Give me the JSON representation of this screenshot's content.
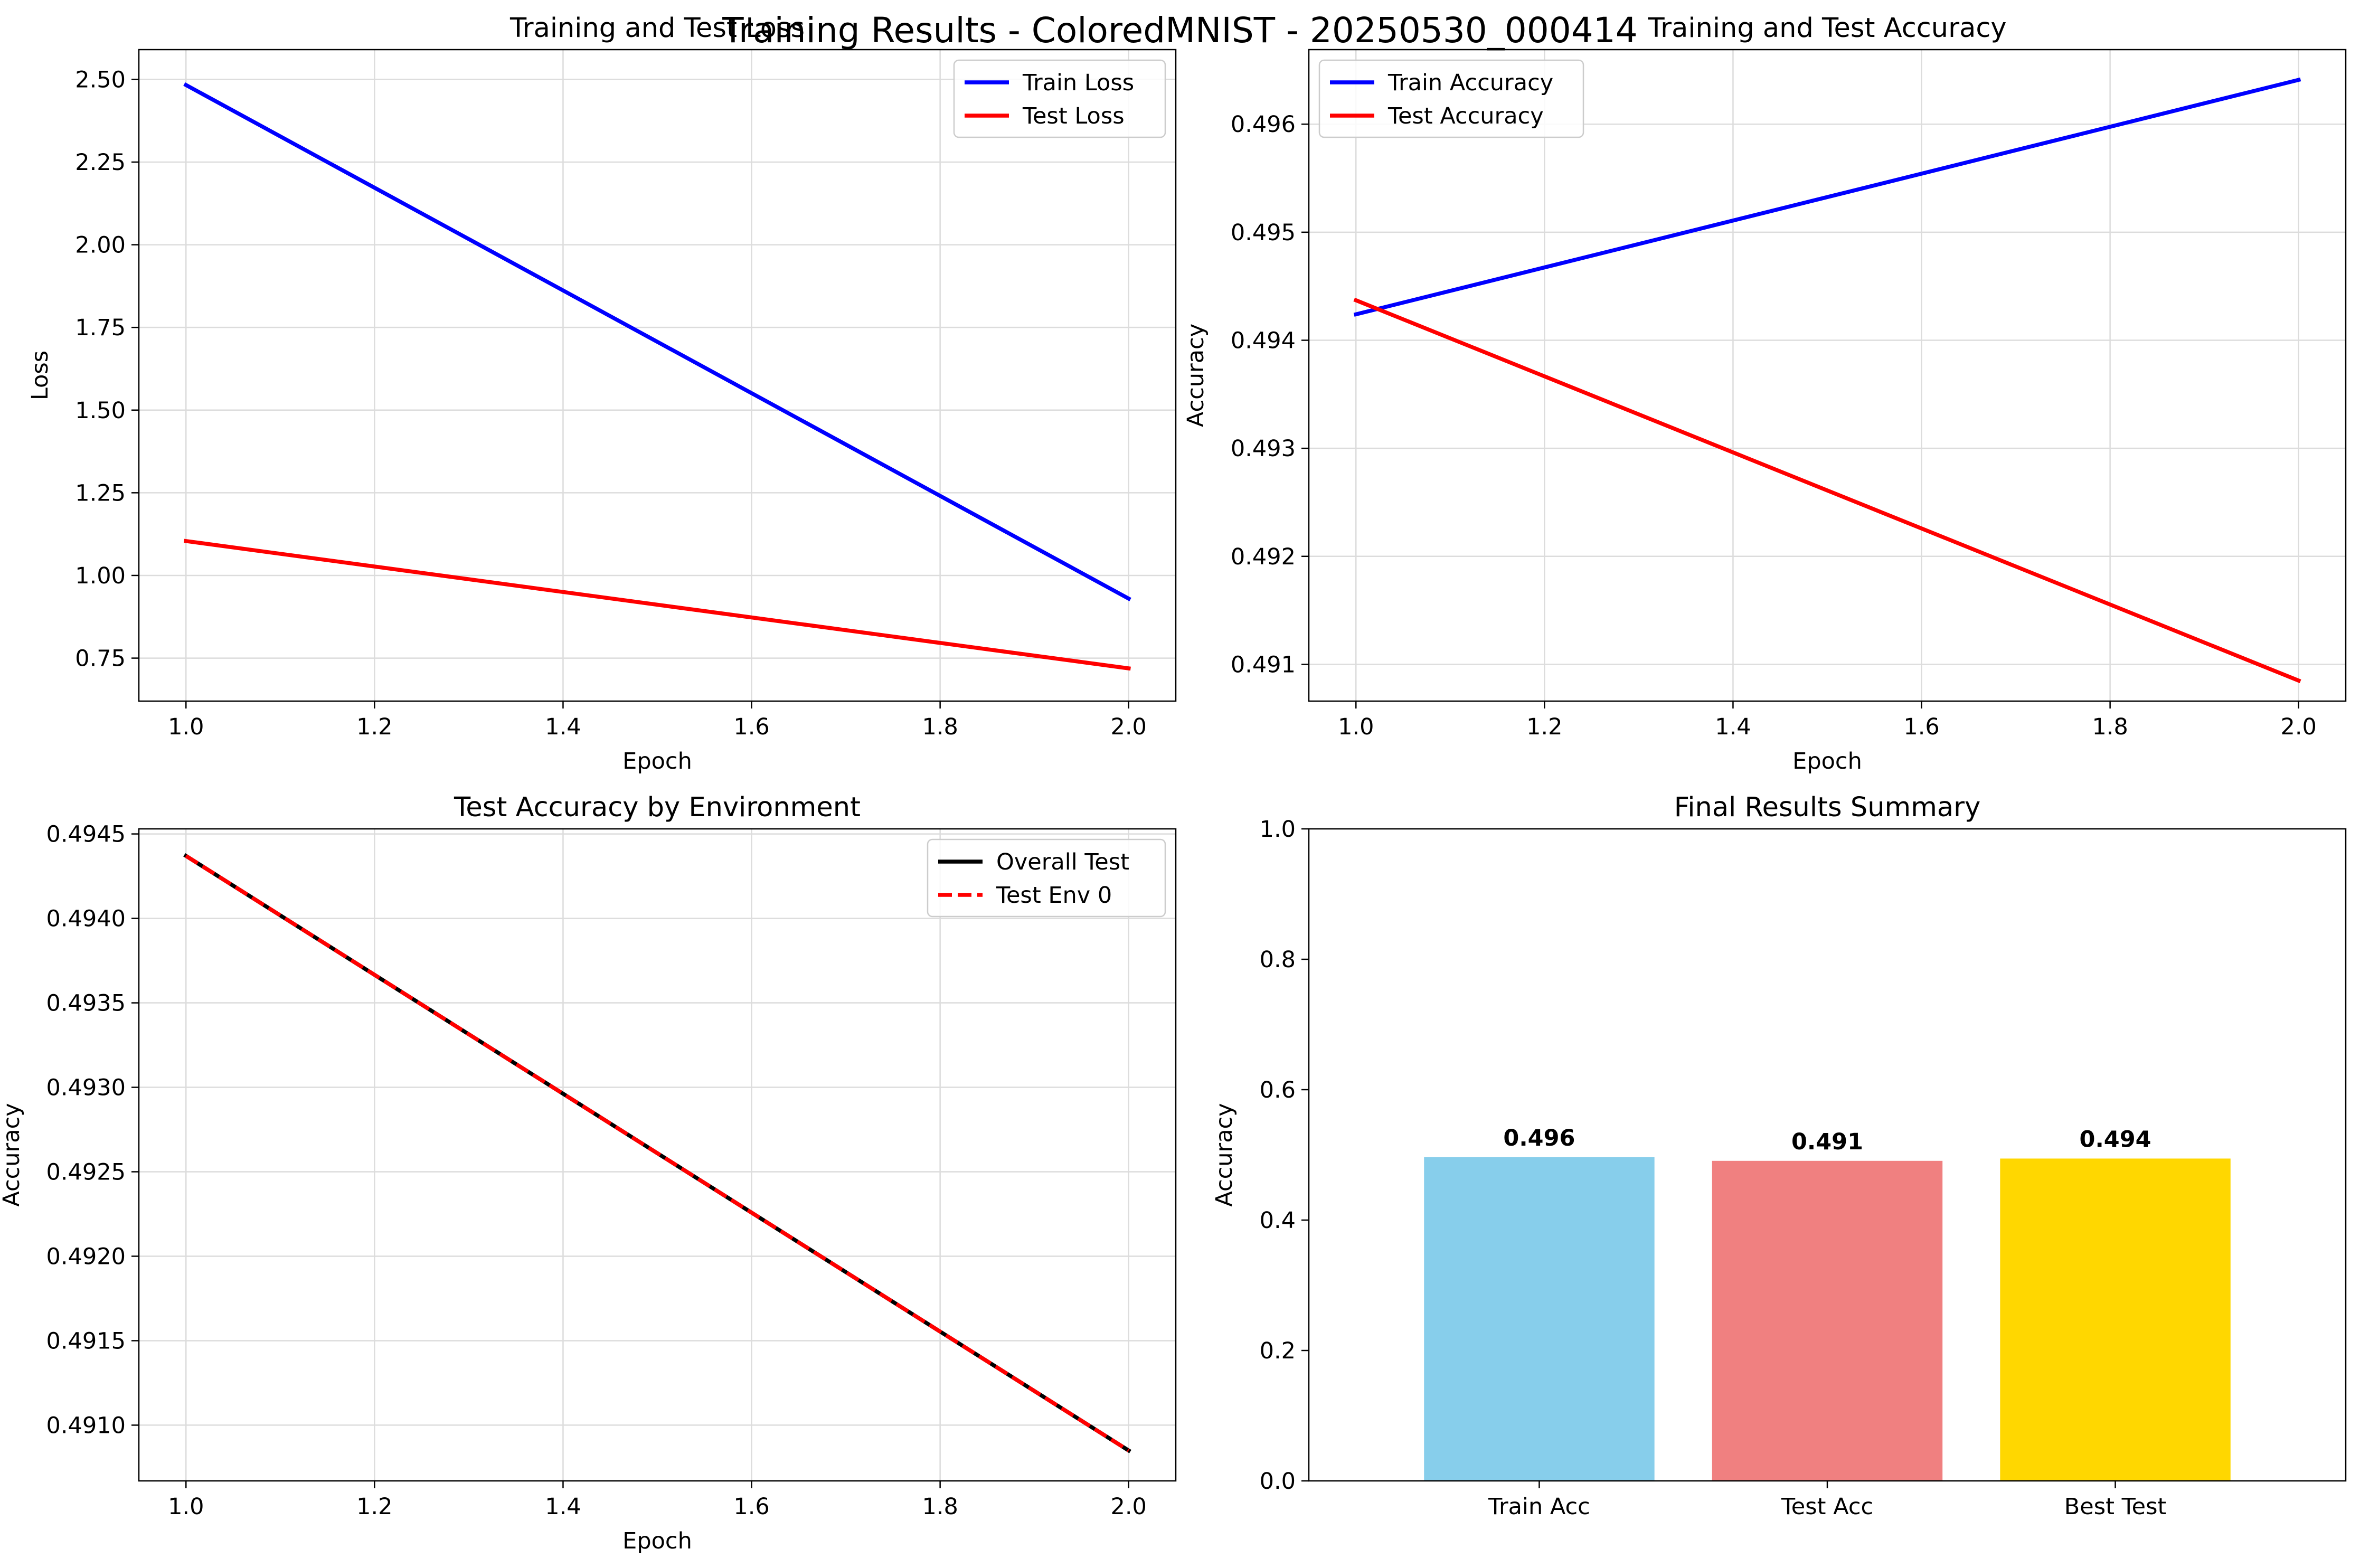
{
  "suptitle": "Training Results - ColoredMNIST - 20250530_000414",
  "chart_data": [
    {
      "type": "line",
      "title": "Training and Test Loss",
      "xlabel": "Epoch",
      "ylabel": "Loss",
      "xlim": [
        0.95,
        2.05
      ],
      "ylim": [
        0.62,
        2.59
      ],
      "xticks": [
        "1.0",
        "1.2",
        "1.4",
        "1.6",
        "1.8",
        "2.0"
      ],
      "yticks": [
        "0.75",
        "1.00",
        "1.25",
        "1.50",
        "1.75",
        "2.00",
        "2.25",
        "2.50"
      ],
      "grid": true,
      "legend": "upper right",
      "x": [
        1.0,
        2.0
      ],
      "series": [
        {
          "name": "Train Loss",
          "values": [
            2.483,
            0.93
          ],
          "color": "#0000ff",
          "style": "solid"
        },
        {
          "name": "Test Loss",
          "values": [
            1.104,
            0.719
          ],
          "color": "#ff0000",
          "style": "solid"
        }
      ]
    },
    {
      "type": "line",
      "title": "Training and Test Accuracy",
      "xlabel": "Epoch",
      "ylabel": "Accuracy",
      "xlim": [
        0.95,
        2.05
      ],
      "ylim": [
        0.49066,
        0.49669
      ],
      "xticks": [
        "1.0",
        "1.2",
        "1.4",
        "1.6",
        "1.8",
        "2.0"
      ],
      "yticks": [
        "0.491",
        "0.492",
        "0.493",
        "0.494",
        "0.495",
        "0.496"
      ],
      "grid": true,
      "legend": "upper left",
      "x": [
        1.0,
        2.0
      ],
      "series": [
        {
          "name": "Train Accuracy",
          "values": [
            0.49424,
            0.49641
          ],
          "color": "#0000ff",
          "style": "solid"
        },
        {
          "name": "Test Accuracy",
          "values": [
            0.49437,
            0.49085
          ],
          "color": "#ff0000",
          "style": "solid"
        }
      ]
    },
    {
      "type": "line",
      "title": "Test Accuracy by Environment",
      "xlabel": "Epoch",
      "ylabel": "Accuracy",
      "xlim": [
        0.95,
        2.05
      ],
      "ylim": [
        0.49067,
        0.49453
      ],
      "xticks": [
        "1.0",
        "1.2",
        "1.4",
        "1.6",
        "1.8",
        "2.0"
      ],
      "yticks": [
        "0.4910",
        "0.4915",
        "0.4920",
        "0.4925",
        "0.4930",
        "0.4935",
        "0.4940",
        "0.4945"
      ],
      "grid": true,
      "legend": "upper right",
      "x": [
        1.0,
        2.0
      ],
      "series": [
        {
          "name": "Overall Test",
          "values": [
            0.49437,
            0.49085
          ],
          "color": "#000000",
          "style": "solid"
        },
        {
          "name": "Test Env 0",
          "values": [
            0.49437,
            0.49085
          ],
          "color": "#ff0000",
          "style": "dashed"
        }
      ]
    },
    {
      "type": "bar",
      "title": "Final Results Summary",
      "xlabel": "",
      "ylabel": "Accuracy",
      "ylim": [
        0,
        1.0
      ],
      "yticks": [
        "0.0",
        "0.2",
        "0.4",
        "0.6",
        "0.8",
        "1.0"
      ],
      "grid": false,
      "categories": [
        "Train Acc",
        "Test Acc",
        "Best Test"
      ],
      "values": [
        0.49641,
        0.49085,
        0.49437
      ],
      "labels": [
        "0.496",
        "0.491",
        "0.494"
      ],
      "colors": [
        "#87ceeb",
        "#f08080",
        "#ffd700"
      ]
    }
  ]
}
